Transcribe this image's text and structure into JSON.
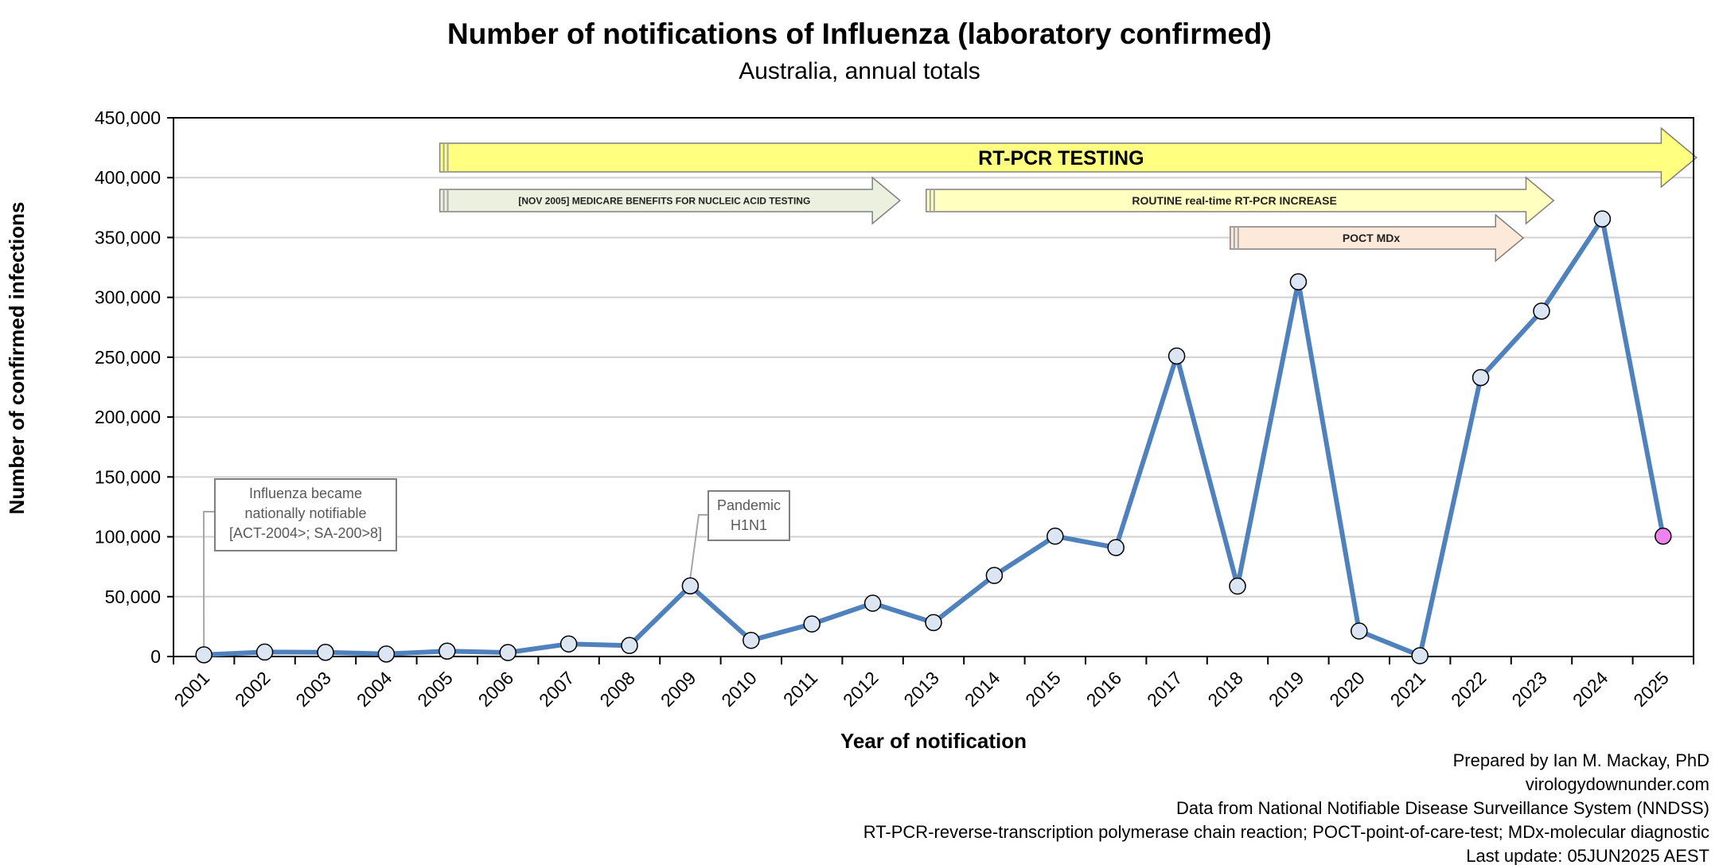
{
  "chart_data": {
    "type": "line",
    "title": "Number of notifications of Influenza (laboratory confirmed)",
    "subtitle": "Australia, annual totals",
    "xlabel": "Year of notification",
    "ylabel": "Number of confirmed infections",
    "ylim": [
      0,
      450000
    ],
    "yticks": [
      0,
      50000,
      100000,
      150000,
      200000,
      250000,
      300000,
      350000,
      400000,
      450000
    ],
    "ytick_labels": [
      "0",
      "50,000",
      "100,000",
      "150,000",
      "200,000",
      "250,000",
      "300,000",
      "350,000",
      "400,000",
      "450,000"
    ],
    "grid": true,
    "legend": "none",
    "categories": [
      "2001",
      "2002",
      "2003",
      "2004",
      "2005",
      "2006",
      "2007",
      "2008",
      "2009",
      "2010",
      "2011",
      "2012",
      "2013",
      "2014",
      "2015",
      "2016",
      "2017",
      "2018",
      "2019",
      "2020",
      "2021",
      "2022",
      "2023",
      "2024",
      "2025"
    ],
    "series": [
      {
        "values": [
          1400,
          3700,
          3500,
          2100,
          4500,
          3300,
          10500,
          9200,
          59000,
          13500,
          27200,
          44500,
          28300,
          67700,
          100500,
          91000,
          251000,
          58800,
          313000,
          21300,
          700,
          233000,
          288500,
          365500,
          100500
        ],
        "color": "#4f81bd",
        "marker_fill": "#dce6f2",
        "highlight_last_fill": "#ee82ee"
      }
    ],
    "annotations": [
      {
        "lines": [
          "Influenza became",
          "nationally notifiable",
          "[ACT-2004>; SA-200>8]"
        ],
        "points_to": "2001"
      },
      {
        "lines": [
          "Pandemic",
          "H1N1"
        ],
        "points_to": "2009"
      }
    ],
    "arrows": [
      {
        "label": "RT-PCR TESTING",
        "color": "#ffff80",
        "from_year": "2005",
        "to_year": "2025"
      },
      {
        "label": "[NOV 2005] MEDICARE BENEFITS FOR NUCLEIC ACID TESTING",
        "color": "#ebf1de",
        "from_year": "2005",
        "to_year": "2012"
      },
      {
        "label": "ROUTINE real-time RT-PCR INCREASE",
        "color": "#ffffc0",
        "from_year": "2013",
        "to_year": "2023"
      },
      {
        "label": "POCT MDx",
        "color": "#fde9d9",
        "from_year": "2018",
        "to_year": "2023"
      }
    ]
  },
  "credits": [
    "Prepared by Ian M. Mackay, PhD",
    "virologydownunder.com",
    "Data from National Notifiable Disease Surveillance System (NNDSS)",
    "RT-PCR-reverse-transcription polymerase chain reaction; POCT-point-of-care-test; MDx-molecular diagnostic",
    "Last update: 05JUN2025 AEST"
  ]
}
